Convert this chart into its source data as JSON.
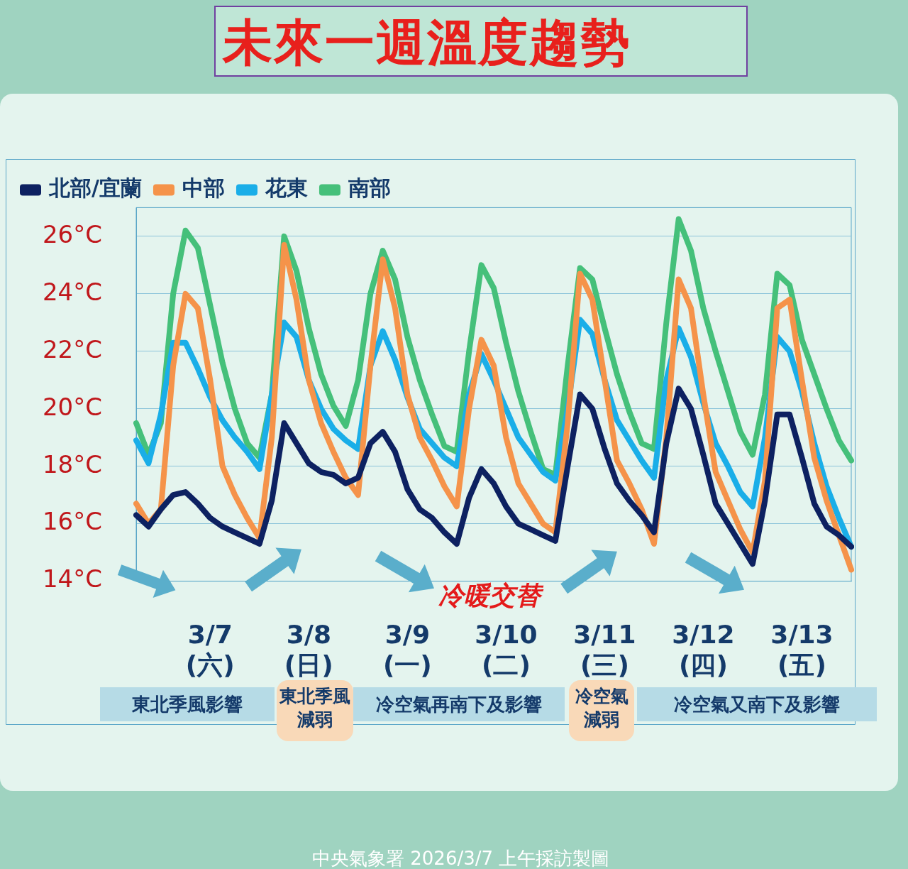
{
  "chart_data": {
    "type": "line",
    "title": "未來一週溫度趨勢",
    "categories": [
      null,
      null,
      null,
      null,
      null,
      null,
      "3/7\n(六)",
      null,
      null,
      null,
      null,
      null,
      null,
      null,
      "3/8\n(日)",
      null,
      null,
      null,
      null,
      null,
      null,
      null,
      "3/9\n(一)",
      null,
      null,
      null,
      null,
      null,
      null,
      null,
      "3/10\n(二)",
      null,
      null,
      null,
      null,
      null,
      null,
      null,
      "3/11\n(三)",
      null,
      null,
      null,
      null,
      null,
      null,
      null,
      "3/12\n(四)",
      null,
      null,
      null,
      null,
      null,
      null,
      null,
      "3/13\n(五)",
      null,
      null,
      null,
      null
    ],
    "series": [
      {
        "name": "北部/宜蘭",
        "color": "#0d2161",
        "values": [
          16.3,
          15.9,
          16.5,
          17.0,
          17.1,
          16.7,
          16.2,
          15.9,
          15.7,
          15.5,
          15.3,
          16.8,
          19.5,
          18.8,
          18.1,
          17.8,
          17.7,
          17.4,
          17.6,
          18.8,
          19.2,
          18.5,
          17.2,
          16.5,
          16.2,
          15.7,
          15.3,
          16.9,
          17.9,
          17.4,
          16.6,
          16.0,
          15.8,
          15.6,
          15.4,
          18.0,
          20.5,
          20.0,
          18.6,
          17.4,
          16.8,
          16.3,
          15.7,
          18.8,
          20.7,
          20.0,
          18.4,
          16.7,
          16.0,
          15.3,
          14.6,
          16.8,
          19.8,
          19.8,
          18.3,
          16.7,
          15.9,
          15.6,
          15.2
        ]
      },
      {
        "name": "中部",
        "color": "#f5934a",
        "values": [
          16.7,
          16.0,
          16.5,
          21.5,
          24.0,
          23.5,
          21.0,
          18.0,
          17.0,
          16.2,
          15.5,
          19.0,
          25.7,
          23.8,
          21.0,
          19.5,
          18.5,
          17.6,
          17.0,
          21.5,
          25.2,
          23.5,
          20.5,
          19.0,
          18.2,
          17.3,
          16.6,
          20.0,
          22.4,
          21.5,
          19.0,
          17.4,
          16.7,
          16.0,
          15.7,
          19.5,
          24.7,
          23.8,
          21.0,
          18.2,
          17.4,
          16.5,
          15.3,
          19.0,
          24.5,
          23.5,
          20.5,
          17.8,
          16.8,
          15.8,
          15.0,
          17.5,
          23.5,
          23.8,
          21.0,
          18.3,
          16.8,
          15.6,
          14.4
        ]
      },
      {
        "name": "花東",
        "color": "#1aaee8",
        "values": [
          18.9,
          18.1,
          19.8,
          22.3,
          22.3,
          21.4,
          20.4,
          19.6,
          19.0,
          18.5,
          17.9,
          20.5,
          23.0,
          22.5,
          21.0,
          20.0,
          19.3,
          18.9,
          18.6,
          21.5,
          22.7,
          21.7,
          20.4,
          19.3,
          18.8,
          18.3,
          18.0,
          20.5,
          21.9,
          21.0,
          20.0,
          19.0,
          18.4,
          17.8,
          17.5,
          20.0,
          23.1,
          22.6,
          21.0,
          19.6,
          18.9,
          18.2,
          17.6,
          21.0,
          22.8,
          21.8,
          20.2,
          18.8,
          18.0,
          17.1,
          16.6,
          19.0,
          22.5,
          22.0,
          20.6,
          18.8,
          17.3,
          16.2,
          15.2
        ]
      },
      {
        "name": "南部",
        "color": "#45c07a",
        "values": [
          19.5,
          18.4,
          19.5,
          24.0,
          26.2,
          25.6,
          23.6,
          21.6,
          20.0,
          18.8,
          18.3,
          20.5,
          26.0,
          24.8,
          22.8,
          21.2,
          20.1,
          19.4,
          21.0,
          24.0,
          25.5,
          24.5,
          22.5,
          21.0,
          19.8,
          18.7,
          18.5,
          22.0,
          25.0,
          24.2,
          22.3,
          20.6,
          19.2,
          17.9,
          17.7,
          21.5,
          24.9,
          24.5,
          22.8,
          21.2,
          19.9,
          18.8,
          18.6,
          23.0,
          26.6,
          25.5,
          23.5,
          22.0,
          20.6,
          19.2,
          18.4,
          20.5,
          24.7,
          24.3,
          22.4,
          21.2,
          20.0,
          18.9,
          18.2
        ]
      }
    ],
    "ylim": [
      14,
      27
    ],
    "yticks": [
      {
        "value": 14,
        "label": "14°C"
      },
      {
        "value": 16,
        "label": "16°C"
      },
      {
        "value": 18,
        "label": "18°C"
      },
      {
        "value": 20,
        "label": "20°C"
      },
      {
        "value": 22,
        "label": "22°C"
      },
      {
        "value": 24,
        "label": "24°C"
      },
      {
        "value": 26,
        "label": "26°C"
      }
    ],
    "grid": "y",
    "legend": "top left",
    "line_style": "solid",
    "annotations": [
      "冷暖交替",
      "東北季風影響",
      "東北季風減弱",
      "冷空氣再南下及影響",
      "冷空氣減弱",
      "冷空氣又南下及影響",
      "中央氣象署 2026/3/7 上午採訪製圖"
    ]
  }
}
